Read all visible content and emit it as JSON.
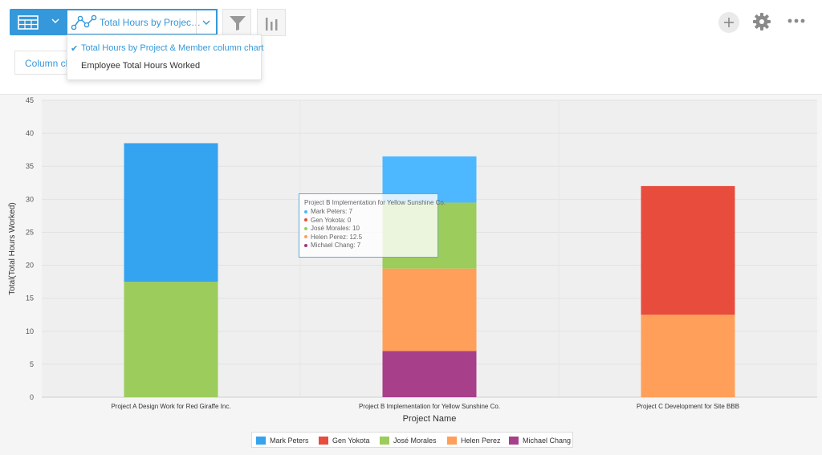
{
  "toolbar": {
    "view_icon": "table-icon",
    "chart_selector_icon": "line-chart-icon",
    "chart_selector_label": "Total Hours by Projec…",
    "filter_icon": "funnel-icon",
    "graph_icon": "bar-graph-icon",
    "add_icon": "plus-icon",
    "settings_icon": "gear-icon",
    "more_icon": "ellipsis-icon",
    "accent_color": "#3498db"
  },
  "chart_type_button": {
    "label": "Column chart"
  },
  "dropdown": {
    "items": [
      {
        "label": "Total Hours by Project & Member column chart",
        "selected": true,
        "check": "✔"
      },
      {
        "label": "Employee Total Hours Worked",
        "selected": false,
        "check": ""
      }
    ]
  },
  "tooltip": {
    "title": "Project B Implementation for Yellow Sunshine Co.",
    "rows": [
      {
        "text": "Mark Peters: 7",
        "color": "#4db8ff"
      },
      {
        "text": "Gen Yokota: 0",
        "color": "#e74c3c"
      },
      {
        "text": "José Morales: 10",
        "color": "#9ccc5c"
      },
      {
        "text": "Helen Perez: 12.5",
        "color": "#ff9f5a"
      },
      {
        "text": "Michael Chang: 7",
        "color": "#a3347b"
      }
    ]
  },
  "chart_data": {
    "type": "bar",
    "stacked": true,
    "categories": [
      "Project A Design Work for Red Giraffe Inc.",
      "Project B Implementation for Yellow Sunshine Co.",
      "Project C Development for Site BBB"
    ],
    "series": [
      {
        "name": "Michael Chang",
        "color": "#a83f8a",
        "values": [
          0,
          7,
          0
        ]
      },
      {
        "name": "Helen Perez",
        "color": "#ff9f5a",
        "values": [
          0,
          12.5,
          12.5
        ]
      },
      {
        "name": "José Morales",
        "color": "#9ccc5c",
        "values": [
          17.5,
          10,
          0
        ]
      },
      {
        "name": "Gen Yokota",
        "color": "#e74c3c",
        "values": [
          0,
          0,
          19.5
        ]
      },
      {
        "name": "Mark Peters",
        "color": "#34a3f0",
        "values": [
          21,
          7,
          0
        ]
      }
    ],
    "highlight": {
      "category_index": 1,
      "series": "Mark Peters",
      "color": "#4db8ff"
    },
    "xlabel": "Project Name",
    "ylabel": "Total(Total Hours Worked)",
    "ylim": [
      0,
      45
    ],
    "yticks": [
      0,
      5,
      10,
      15,
      20,
      25,
      30,
      35,
      40,
      45
    ],
    "grid": true,
    "legend_position": "bottom"
  },
  "legend": {
    "items": [
      {
        "label": "Mark Peters",
        "color": "#34a3f0"
      },
      {
        "label": "Gen Yokota",
        "color": "#e74c3c"
      },
      {
        "label": "José Morales",
        "color": "#9ccc5c"
      },
      {
        "label": "Helen Perez",
        "color": "#ff9f5a"
      },
      {
        "label": "Michael Chang",
        "color": "#a83f8a"
      }
    ]
  }
}
